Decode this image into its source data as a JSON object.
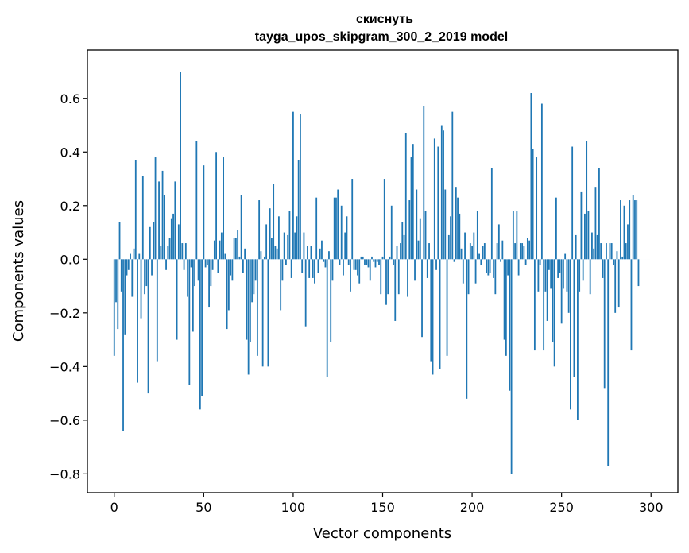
{
  "chart_data": {
    "type": "bar",
    "title_line1": "скиснуть",
    "title_line2": "tayga_upos_skipgram_300_2_2019 model",
    "xlabel": "Vector components",
    "ylabel": "Components values",
    "xlim": [
      -15,
      315
    ],
    "ylim": [
      -0.87,
      0.78
    ],
    "xticks": [
      0,
      50,
      100,
      150,
      200,
      250,
      300
    ],
    "xtick_labels": [
      "0",
      "50",
      "100",
      "150",
      "200",
      "250",
      "300"
    ],
    "yticks": [
      -0.8,
      -0.6,
      -0.4,
      -0.2,
      0.0,
      0.2,
      0.4,
      0.6
    ],
    "ytick_labels": [
      "−0.8",
      "−0.6",
      "−0.4",
      "−0.2",
      "0.0",
      "0.2",
      "0.4",
      "0.6"
    ],
    "bar_color": "#1f77b4",
    "grid": false,
    "x_start": 0,
    "values": [
      -0.36,
      -0.16,
      -0.26,
      0.14,
      -0.12,
      -0.64,
      -0.28,
      -0.06,
      -0.04,
      0.02,
      -0.14,
      0.04,
      0.37,
      -0.46,
      0.02,
      -0.22,
      0.31,
      -0.13,
      -0.1,
      -0.5,
      0.12,
      -0.06,
      0.14,
      0.38,
      -0.38,
      0.29,
      0.05,
      0.33,
      0.24,
      -0.04,
      0.05,
      0.08,
      0.15,
      0.17,
      0.29,
      -0.3,
      0.13,
      0.7,
      0.06,
      -0.04,
      0.06,
      -0.14,
      -0.47,
      -0.03,
      -0.27,
      -0.1,
      0.44,
      -0.08,
      -0.56,
      -0.51,
      0.35,
      -0.03,
      -0.02,
      -0.18,
      -0.1,
      -0.04,
      0.07,
      0.4,
      -0.05,
      0.07,
      0.1,
      0.38,
      0.02,
      -0.26,
      -0.19,
      -0.06,
      -0.08,
      0.08,
      0.08,
      0.11,
      0.01,
      0.24,
      -0.05,
      0.04,
      -0.3,
      -0.43,
      -0.31,
      -0.16,
      -0.13,
      -0.08,
      -0.36,
      0.22,
      0.03,
      -0.4,
      0.01,
      0.13,
      -0.4,
      0.19,
      0.08,
      0.28,
      0.05,
      0.04,
      0.16,
      -0.19,
      -0.08,
      0.1,
      -0.02,
      0.09,
      0.18,
      -0.07,
      0.55,
      0.1,
      0.16,
      0.37,
      0.54,
      -0.05,
      0.1,
      -0.25,
      0.05,
      -0.07,
      0.05,
      -0.07,
      -0.09,
      0.23,
      -0.05,
      0.04,
      0.07,
      -0.01,
      -0.03,
      -0.44,
      0.03,
      -0.31,
      -0.08,
      0.23,
      0.23,
      0.26,
      -0.02,
      0.2,
      -0.06,
      0.1,
      0.16,
      -0.02,
      -0.12,
      0.3,
      -0.04,
      -0.04,
      -0.06,
      -0.09,
      0.01,
      0.01,
      -0.02,
      -0.02,
      -0.03,
      -0.08,
      0.01,
      -0.01,
      -0.03,
      -0.01,
      -0.02,
      -0.13,
      0.01,
      0.3,
      -0.17,
      -0.13,
      0.01,
      0.2,
      -0.02,
      -0.23,
      0.05,
      -0.13,
      0.06,
      0.14,
      0.09,
      0.47,
      -0.14,
      0.22,
      0.38,
      0.43,
      -0.08,
      0.26,
      0.07,
      0.15,
      -0.29,
      0.57,
      0.18,
      -0.07,
      0.06,
      -0.38,
      -0.43,
      0.45,
      -0.04,
      0.42,
      -0.41,
      0.5,
      0.48,
      0.26,
      -0.36,
      0.09,
      0.16,
      0.55,
      -0.01,
      0.27,
      0.23,
      0.17,
      0.04,
      -0.09,
      0.1,
      -0.52,
      -0.13,
      0.06,
      0.05,
      0.1,
      -0.09,
      0.18,
      0.02,
      -0.02,
      0.05,
      0.06,
      -0.05,
      -0.06,
      -0.05,
      0.34,
      -0.07,
      -0.13,
      0.06,
      0.13,
      -0.01,
      0.07,
      -0.3,
      -0.36,
      -0.06,
      -0.49,
      -0.8,
      0.18,
      0.06,
      0.18,
      -0.06,
      0.06,
      0.06,
      0.05,
      -0.02,
      0.08,
      0.07,
      0.62,
      0.41,
      -0.34,
      0.38,
      -0.12,
      -0.02,
      0.58,
      -0.34,
      -0.12,
      -0.23,
      -0.04,
      -0.11,
      -0.31,
      -0.4,
      0.23,
      -0.07,
      -0.05,
      -0.24,
      -0.11,
      0.02,
      -0.12,
      -0.2,
      -0.56,
      0.42,
      -0.44,
      0.09,
      -0.6,
      -0.12,
      0.25,
      -0.08,
      0.17,
      0.44,
      0.18,
      -0.13,
      0.1,
      0.04,
      0.27,
      0.09,
      0.34,
      0.06,
      -0.07,
      -0.48,
      0.06,
      -0.77,
      0.06,
      0.06,
      -0.02,
      -0.2,
      0.03,
      -0.18,
      0.22,
      0.01,
      0.2,
      0.06,
      0.13,
      0.22,
      -0.34,
      0.24,
      0.22,
      0.22,
      -0.1,
      0.0,
      0.0,
      0.0,
      0.0,
      0.0,
      0.0
    ]
  }
}
